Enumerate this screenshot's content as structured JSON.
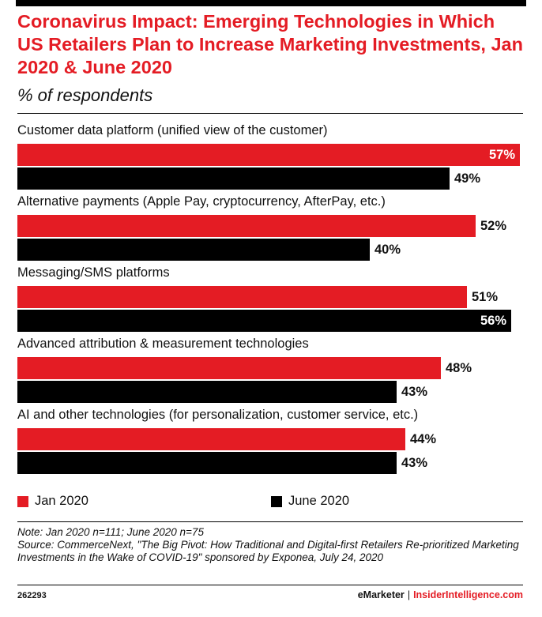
{
  "chart_data": {
    "type": "bar",
    "orientation": "horizontal",
    "title": "Coronavirus Impact: Emerging Technologies in Which US Retailers Plan to Increase Marketing Investments, Jan 2020 & June 2020",
    "subtitle": "% of respondents",
    "categories": [
      "Customer data platform (unified view of the customer)",
      "Alternative payments (Apple Pay, cryptocurrency, AfterPay, etc.)",
      "Messaging/SMS platforms",
      "Advanced attribution & measurement technologies",
      "AI and other technologies (for personalization, customer service, etc.)"
    ],
    "series": [
      {
        "name": "Jan 2020",
        "color": "#e41c24",
        "values": [
          57,
          52,
          51,
          48,
          44
        ],
        "labels": [
          "57%",
          "52%",
          "51%",
          "48%",
          "44%"
        ]
      },
      {
        "name": "June 2020",
        "color": "#000000",
        "values": [
          49,
          40,
          56,
          43,
          43
        ],
        "labels": [
          "49%",
          "40%",
          "56%",
          "43%",
          "43%"
        ]
      }
    ],
    "xlim": [
      0,
      57
    ],
    "legend_position": "bottom-left",
    "grid": false
  },
  "note": {
    "line1": "Note: Jan 2020 n=111; June 2020 n=75",
    "line2": "Source: CommerceNext, \"The Big Pivot: How Traditional and Digital-first Retailers Re-prioritized Marketing Investments in the Wake of COVID-19\" sponsored by Exponea, July 24, 2020"
  },
  "footer": {
    "id": "262293",
    "brand": "eMarketer",
    "separator": "|",
    "site": "InsiderIntelligence.com"
  }
}
